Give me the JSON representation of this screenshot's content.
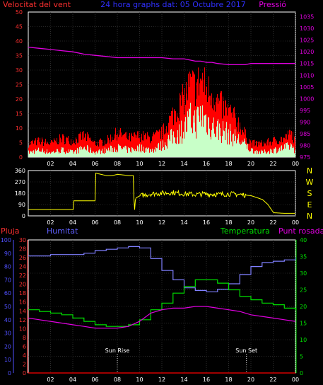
{
  "header": {
    "left": "Velocitat del vent",
    "center": "24 hora graphs dat: 05 Octubre 2017",
    "right": "Pressió"
  },
  "colors": {
    "wind_gust": "#ff0000",
    "wind_avg": "#c8ffc8",
    "pressure": "#e000e0",
    "wind_dir": "#ffff00",
    "humidity": "#8080ff",
    "temperature": "#00e000",
    "dewpoint": "#e000e0",
    "rain": "#ff0000",
    "frame": "#ffffff",
    "axis_left": "#ff3030",
    "axis_hum": "#5050ff",
    "axis_temp": "#00e000",
    "dir_labels": "#ffff00"
  },
  "x_ticks": [
    "02",
    "04",
    "06",
    "08",
    "10",
    "12",
    "14",
    "16",
    "18",
    "20",
    "22",
    "00"
  ],
  "sun": {
    "rise_label": "Sun Rise",
    "set_label": "Sun Set",
    "rise_hour": 8,
    "set_hour": 19.6
  },
  "chart_data": [
    {
      "type": "line",
      "name": "wind-pressure",
      "y_left": {
        "label": "Velocitat del vent",
        "ticks": [
          0,
          5,
          10,
          15,
          20,
          25,
          30,
          35,
          40,
          45,
          50
        ],
        "lim": [
          0,
          50
        ]
      },
      "y_right": {
        "label": "Pressió",
        "ticks": [
          975,
          980,
          985,
          990,
          995,
          1000,
          1005,
          1010,
          1015,
          1020,
          1025,
          1030,
          1035
        ],
        "lim": [
          975,
          1037
        ]
      },
      "x": [
        0,
        1,
        2,
        3,
        4,
        5,
        6,
        7,
        8,
        9,
        10,
        11,
        12,
        13,
        14,
        14.5,
        15,
        15.5,
        16,
        16.5,
        17,
        18,
        19,
        19.5,
        20,
        21,
        22,
        23,
        23.7,
        24
      ],
      "series": [
        {
          "name": "gust",
          "values": [
            5,
            6,
            5,
            7,
            6,
            8,
            5,
            6,
            9,
            7,
            8,
            7,
            9,
            16,
            22,
            27,
            26,
            29,
            25,
            24,
            20,
            17,
            12,
            8,
            5,
            5,
            6,
            7,
            9,
            4
          ]
        },
        {
          "name": "average",
          "values": [
            2,
            3,
            2,
            3,
            2,
            4,
            2,
            3,
            4,
            3,
            4,
            3,
            5,
            9,
            12,
            16,
            15,
            18,
            16,
            13,
            12,
            10,
            7,
            5,
            3,
            2,
            3,
            4,
            5,
            2
          ]
        },
        {
          "name": "pressure",
          "values": [
            1022,
            1021.5,
            1021,
            1020.5,
            1020,
            1019,
            1018.5,
            1018,
            1017.5,
            1017.5,
            1017.5,
            1017.5,
            1017.5,
            1017,
            1017,
            1016.5,
            1016,
            1016,
            1015.5,
            1015.5,
            1015,
            1014.5,
            1014.5,
            1014.5,
            1015,
            1015,
            1015,
            1015,
            1015,
            1015
          ]
        }
      ]
    },
    {
      "type": "line",
      "name": "wind-direction",
      "y_left": {
        "ticks": [
          0,
          90,
          180,
          270,
          360
        ],
        "lim": [
          0,
          360
        ]
      },
      "y_right_labels": [
        "N",
        "W",
        "S",
        "E",
        "N"
      ],
      "x": [
        0,
        1,
        2,
        3,
        4,
        4.05,
        5,
        6,
        6,
        6.5,
        7,
        7.5,
        8,
        9,
        9.4,
        9.5,
        9.6,
        10,
        11,
        12,
        13,
        14,
        15,
        16,
        17,
        18,
        19,
        20,
        21,
        21.5,
        22,
        23,
        24
      ],
      "series": [
        {
          "name": "direction",
          "values": [
            50,
            50,
            50,
            50,
            50,
            120,
            120,
            120,
            340,
            330,
            320,
            320,
            330,
            320,
            320,
            20,
            140,
            160,
            175,
            180,
            185,
            175,
            170,
            175,
            170,
            175,
            170,
            160,
            130,
            90,
            25,
            20,
            20
          ]
        }
      ]
    },
    {
      "type": "line",
      "name": "hum-temp-rain",
      "y_left": {
        "label": "Pluja",
        "ticks": [
          0,
          2,
          4,
          6,
          8,
          10,
          12,
          14,
          16,
          18,
          20,
          22,
          24,
          26,
          28,
          30
        ],
        "lim": [
          0,
          30
        ]
      },
      "y_hum": {
        "label": "Humitat",
        "ticks": [
          0,
          10,
          20,
          30,
          40,
          50,
          60,
          70,
          80,
          90,
          100
        ],
        "lim": [
          0,
          100
        ]
      },
      "y_right": {
        "label": "Temperatura",
        "ticks": [
          0,
          5,
          10,
          15,
          20,
          25,
          30,
          35,
          40
        ],
        "lim": [
          0,
          40
        ]
      },
      "right_label_2": "Punt rosada",
      "x": [
        0,
        1,
        2,
        3,
        4,
        5,
        6,
        7,
        8,
        9,
        10,
        11,
        12,
        13,
        14,
        15,
        16,
        17,
        18,
        19,
        20,
        21,
        22,
        23,
        24
      ],
      "series": [
        {
          "name": "humidity",
          "values": [
            88,
            88,
            89,
            89,
            89,
            90,
            92,
            93,
            94,
            95,
            94,
            86,
            77,
            70,
            64,
            62,
            61,
            63,
            67,
            74,
            80,
            83,
            84,
            85,
            87
          ]
        },
        {
          "name": "temperature",
          "values": [
            19,
            18.5,
            18,
            17.5,
            16.5,
            15.5,
            14.5,
            14,
            14,
            14.5,
            16,
            19,
            21,
            24,
            26,
            28,
            28,
            27,
            25,
            23,
            22,
            21,
            20.5,
            19.5,
            19
          ]
        },
        {
          "name": "dewpoint",
          "values": [
            16.5,
            16,
            15.5,
            15,
            14.5,
            14,
            13.5,
            13.5,
            13.5,
            14,
            15.5,
            18,
            19,
            19.5,
            19.5,
            20,
            20,
            19.5,
            19,
            18.5,
            17.5,
            17,
            16.5,
            16,
            15.5
          ]
        },
        {
          "name": "rain",
          "values": [
            0,
            0,
            0,
            0,
            0,
            0,
            0,
            0,
            0,
            0,
            0,
            0,
            0,
            0,
            0,
            0,
            0,
            0,
            0,
            0,
            0,
            0,
            0,
            0,
            0
          ]
        }
      ]
    }
  ]
}
